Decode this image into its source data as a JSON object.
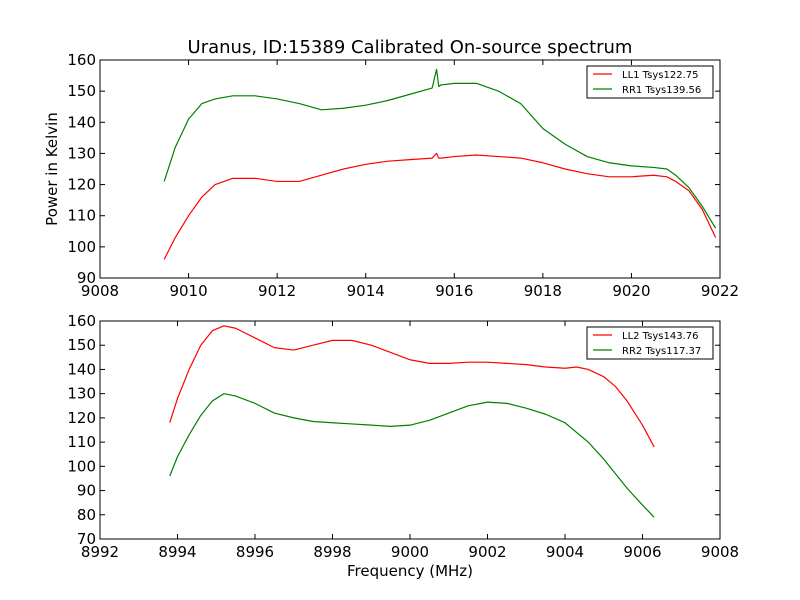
{
  "chart_data": [
    {
      "type": "line",
      "title": "Uranus, ID:15389 Calibrated On-source spectrum",
      "xlabel": "",
      "ylabel": "Power in Kelvin",
      "xlim": [
        9008,
        9022
      ],
      "ylim": [
        90,
        160
      ],
      "xticks": [
        "9008",
        "9010",
        "9012",
        "9014",
        "9016",
        "9018",
        "9020",
        "9022"
      ],
      "yticks": [
        "90",
        "100",
        "110",
        "120",
        "130",
        "140",
        "150",
        "160"
      ],
      "legend_position": "top-right",
      "series": [
        {
          "name": "LL1 Tsys122.75",
          "color": "#ff0000",
          "x": [
            9009.45,
            9009.7,
            9010.0,
            9010.3,
            9010.6,
            9011.0,
            9011.5,
            9012.0,
            9012.5,
            9013.0,
            9013.5,
            9014.0,
            9014.5,
            9015.0,
            9015.5,
            9015.6,
            9015.65,
            9015.7,
            9016.0,
            9016.5,
            9017.0,
            9017.5,
            9018.0,
            9018.5,
            9019.0,
            9019.5,
            9020.0,
            9020.5,
            9020.8,
            9021.0,
            9021.3,
            9021.6,
            9021.9
          ],
          "y": [
            96,
            103,
            110,
            116,
            120,
            122,
            122,
            121,
            121,
            123,
            125,
            126.5,
            127.5,
            128,
            128.5,
            130,
            128.5,
            128.5,
            129,
            129.5,
            129,
            128.5,
            127,
            125,
            123.5,
            122.5,
            122.5,
            123,
            122.5,
            121,
            118,
            112,
            103
          ]
        },
        {
          "name": "RR1 Tsys139.56",
          "color": "#008000",
          "x": [
            9009.45,
            9009.7,
            9010.0,
            9010.3,
            9010.6,
            9011.0,
            9011.5,
            9012.0,
            9012.5,
            9013.0,
            9013.5,
            9014.0,
            9014.5,
            9015.0,
            9015.5,
            9015.6,
            9015.65,
            9015.7,
            9016.0,
            9016.5,
            9017.0,
            9017.5,
            9018.0,
            9018.5,
            9019.0,
            9019.5,
            9020.0,
            9020.5,
            9020.8,
            9021.0,
            9021.3,
            9021.6,
            9021.9
          ],
          "y": [
            121,
            132,
            141,
            146,
            147.5,
            148.5,
            148.5,
            147.5,
            146,
            144,
            144.5,
            145.5,
            147,
            149,
            151,
            157,
            151.5,
            152,
            152.5,
            152.5,
            150,
            146,
            138,
            133,
            129,
            127,
            126,
            125.5,
            125,
            123,
            119,
            113,
            106
          ]
        }
      ]
    },
    {
      "type": "line",
      "title": "",
      "xlabel": "Frequency (MHz)",
      "ylabel": "",
      "xlim": [
        8992,
        9008
      ],
      "ylim": [
        70,
        160
      ],
      "xticks": [
        "8992",
        "8994",
        "8996",
        "8998",
        "9000",
        "9002",
        "9004",
        "9006",
        "9008"
      ],
      "yticks": [
        "70",
        "80",
        "90",
        "100",
        "110",
        "120",
        "130",
        "140",
        "150",
        "160"
      ],
      "legend_position": "top-right",
      "series": [
        {
          "name": "LL2 Tsys143.76",
          "color": "#ff0000",
          "x": [
            8993.8,
            8994.0,
            8994.3,
            8994.6,
            8994.9,
            8995.2,
            8995.5,
            8996.0,
            8996.5,
            8997.0,
            8997.5,
            8998.0,
            8998.5,
            8999.0,
            8999.5,
            9000.0,
            9000.5,
            9001.0,
            9001.5,
            9002.0,
            9002.5,
            9003.0,
            9003.5,
            9004.0,
            9004.3,
            9004.6,
            9005.0,
            9005.3,
            9005.6,
            9006.0,
            9006.3
          ],
          "y": [
            118,
            128,
            140,
            150,
            156,
            158,
            157,
            153,
            149,
            148,
            150,
            152,
            152,
            150,
            147,
            144,
            142.5,
            142.5,
            143,
            143,
            142.5,
            142,
            141,
            140.5,
            141,
            140,
            137,
            133,
            127,
            117,
            108
          ]
        },
        {
          "name": "RR2 Tsys117.37",
          "color": "#008000",
          "x": [
            8993.8,
            8994.0,
            8994.3,
            8994.6,
            8994.9,
            8995.2,
            8995.5,
            8996.0,
            8996.5,
            8997.0,
            8997.5,
            8998.0,
            8998.5,
            8999.0,
            8999.5,
            9000.0,
            9000.5,
            9001.0,
            9001.5,
            9002.0,
            9002.5,
            9003.0,
            9003.5,
            9004.0,
            9004.3,
            9004.6,
            9005.0,
            9005.3,
            9005.6,
            9006.0,
            9006.3
          ],
          "y": [
            96,
            104,
            113,
            121,
            127,
            130,
            129,
            126,
            122,
            120,
            118.5,
            118,
            117.5,
            117,
            116.5,
            117,
            119,
            122,
            125,
            126.5,
            126,
            124,
            121.5,
            118,
            114,
            110,
            103,
            97,
            91,
            84,
            79
          ]
        }
      ]
    }
  ]
}
